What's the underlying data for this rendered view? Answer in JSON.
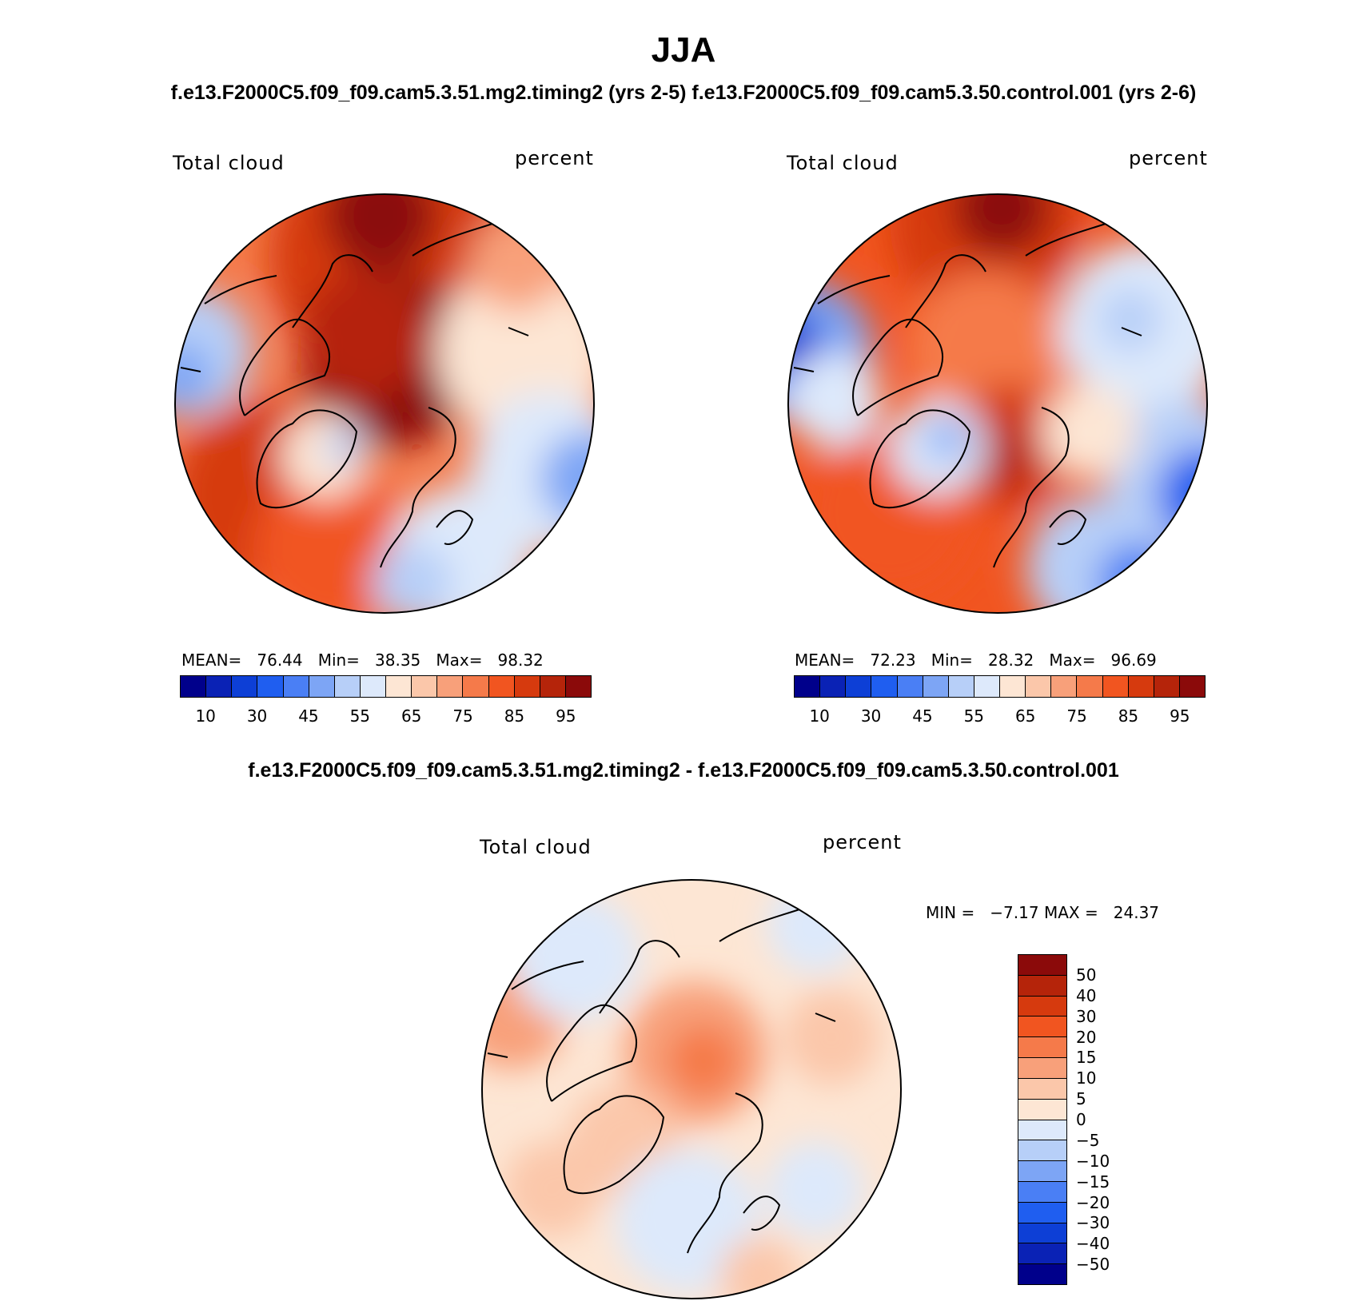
{
  "title": "JJA",
  "subtitle_top": "f.e13.F2000C5.f09_f09.cam5.3.51.mg2.timing2 (yrs 2-5)   f.e13.F2000C5.f09_f09.cam5.3.50.control.001 (yrs 2-6)",
  "subtitle_diff": "f.e13.F2000C5.f09_f09.cam5.3.51.mg2.timing2 - f.e13.F2000C5.f09_f09.cam5.3.50.control.001",
  "panels": [
    {
      "left_label": "Total cloud",
      "right_label": "percent",
      "stats": "MEAN=   76.44   Min=   38.35   Max=   98.32",
      "mean": 76.44,
      "min": 38.35,
      "max": 98.32
    },
    {
      "left_label": "Total cloud",
      "right_label": "percent",
      "stats": "MEAN=   72.23   Min=   28.32   Max=   96.69",
      "mean": 72.23,
      "min": 28.32,
      "max": 96.69
    }
  ],
  "abs_colorbar": {
    "colors": [
      "#00008b",
      "#0a22b5",
      "#0d3fd6",
      "#1f5ef0",
      "#4a7ff5",
      "#7da5f5",
      "#b7cff8",
      "#dde9fb",
      "#fde6d4",
      "#fbc7aa",
      "#f8a07a",
      "#f57a4a",
      "#f15520",
      "#d63a0e",
      "#b5240a",
      "#8b0a0a"
    ],
    "ticks": [
      "10",
      "30",
      "45",
      "55",
      "65",
      "75",
      "85",
      "95"
    ]
  },
  "diff_panel": {
    "left_label": "Total cloud",
    "right_label": "percent",
    "minmax": "MIN =   −7.17 MAX =   24.37",
    "min": -7.17,
    "max": 24.37
  },
  "diff_colorbar": {
    "colors": [
      "#8b0a0a",
      "#b5240a",
      "#d63a0e",
      "#f15520",
      "#f57a4a",
      "#f8a07a",
      "#fbc7aa",
      "#fde6d4",
      "#dde9fb",
      "#b7cff8",
      "#7da5f5",
      "#4a7ff5",
      "#1f5ef0",
      "#0d3fd6",
      "#0a22b5",
      "#00008b"
    ],
    "ticks": [
      "50",
      "40",
      "30",
      "20",
      "15",
      "10",
      "5",
      "0",
      "−5",
      "−10",
      "−15",
      "−20",
      "−30",
      "−40",
      "−50"
    ]
  }
}
